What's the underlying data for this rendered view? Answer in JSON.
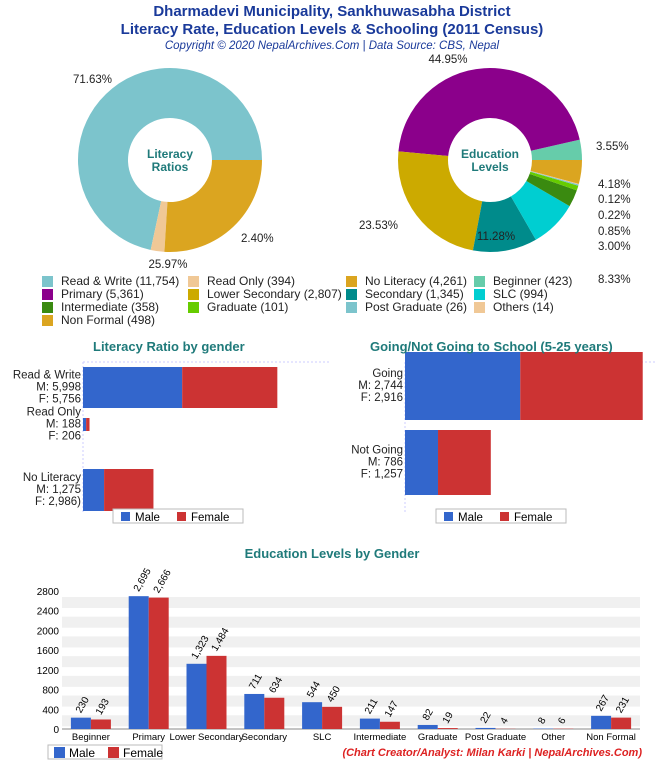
{
  "header": {
    "title1": "Dharmadevi Municipality, Sankhuwasabha District",
    "title2": "Literacy Rate, Education Levels & Schooling (2011 Census)",
    "copyright": "Copyright © 2020 NepalArchives.Com | Data Source: CBS, Nepal"
  },
  "colors": {
    "male": "#3366cc",
    "female": "#cc3333"
  },
  "chart_data": [
    {
      "type": "pie",
      "center_label": "Literacy Ratios",
      "slices": [
        {
          "label": "Read & Write",
          "value": 11754,
          "pct": "71.63%",
          "color": "#7cc4cc"
        },
        {
          "label": "Read Only",
          "value": 394,
          "pct": "2.40%",
          "color": "#f0c896"
        },
        {
          "label": "No Literacy",
          "value": 4261,
          "pct": "25.97%",
          "color": "#dba520"
        }
      ]
    },
    {
      "type": "pie",
      "center_label": "Education Levels",
      "slices": [
        {
          "label": "Beginner",
          "value": 423,
          "pct": "3.55%",
          "color": "#66ccaa"
        },
        {
          "label": "Primary",
          "value": 5361,
          "pct": "44.95%",
          "color": "#8b008b"
        },
        {
          "label": "Lower Secondary",
          "value": 2807,
          "pct": "23.53%",
          "color": "#ccaa00"
        },
        {
          "label": "Secondary",
          "value": 1345,
          "pct": "11.28%",
          "color": "#008b8b"
        },
        {
          "label": "SLC",
          "value": 994,
          "pct": "8.33%",
          "color": "#00ced1"
        },
        {
          "label": "Intermediate",
          "value": 358,
          "pct": "3.00%",
          "color": "#3a8a10"
        },
        {
          "label": "Graduate",
          "value": 101,
          "pct": "0.85%",
          "color": "#66cc00"
        },
        {
          "label": "Post Graduate",
          "value": 26,
          "pct": "0.22%",
          "color": "#7cc4cc"
        },
        {
          "label": "Others",
          "value": 14,
          "pct": "0.12%",
          "color": "#f0c896"
        },
        {
          "label": "Non Formal",
          "value": 498,
          "pct": "4.18%",
          "color": "#dba520"
        }
      ]
    },
    {
      "type": "bar",
      "orientation": "horizontal",
      "stacked": true,
      "title": "Literacy Ratio by gender",
      "xlim": [
        0,
        15000
      ],
      "categories": [
        {
          "name": "Read & Write",
          "m": "M: 5,998",
          "f": "F: 5,756"
        },
        {
          "name": "Read Only",
          "m": "M: 188",
          "f": "F: 206"
        },
        {
          "name": "No Literacy",
          "m": "M: 1,275",
          "f": "F: 2,986)"
        }
      ],
      "series": [
        {
          "name": "Male",
          "values": [
            5998,
            188,
            1275
          ]
        },
        {
          "name": "Female",
          "values": [
            5756,
            206,
            2986
          ]
        }
      ],
      "legend": "bottom"
    },
    {
      "type": "bar",
      "orientation": "horizontal",
      "stacked": true,
      "title": "Going/Not Going to School (5-25 years)",
      "xlim": [
        0,
        6000
      ],
      "categories": [
        {
          "name": "Going",
          "m": "M: 2,744",
          "f": "F: 2,916"
        },
        {
          "name": "Not Going",
          "m": "M: 786",
          "f": "F: 1,257"
        }
      ],
      "series": [
        {
          "name": "Male",
          "values": [
            2744,
            786
          ]
        },
        {
          "name": "Female",
          "values": [
            2916,
            1257
          ]
        }
      ],
      "legend": "bottom"
    },
    {
      "type": "bar",
      "title": "Education Levels by Gender",
      "ylim": [
        0,
        2800
      ],
      "yticks": [
        "0",
        "400",
        "800",
        "1200",
        "1600",
        "2000",
        "2400",
        "2800"
      ],
      "categories": [
        "Beginner",
        "Primary",
        "Lower Secondary",
        "Secondary",
        "SLC",
        "Intermediate",
        "Graduate",
        "Post Graduate",
        "Other",
        "Non Formal"
      ],
      "series": [
        {
          "name": "Male",
          "values": [
            230,
            2695,
            1323,
            711,
            544,
            211,
            82,
            22,
            8,
            267
          ],
          "labels": [
            "230",
            "2,695",
            "1,323",
            "711",
            "544",
            "211",
            "82",
            "22",
            "8",
            "267"
          ]
        },
        {
          "name": "Female",
          "values": [
            193,
            2666,
            1484,
            634,
            450,
            147,
            19,
            4,
            6,
            231
          ],
          "labels": [
            "193",
            "2,666",
            "1,484",
            "634",
            "450",
            "147",
            "19",
            "4",
            "6",
            "231"
          ]
        }
      ],
      "legend": "bottom-left"
    }
  ],
  "legend_items": [
    "Read & Write (11,754)",
    "Read Only (394)",
    "No Literacy (4,261)",
    "Beginner (423)",
    "Primary (5,361)",
    "Lower Secondary (2,807)",
    "Secondary (1,345)",
    "SLC (994)",
    "Intermediate (358)",
    "Graduate (101)",
    "Post Graduate (26)",
    "Others (14)",
    "Non Formal (498)"
  ],
  "legend_colors": [
    "#7cc4cc",
    "#f0c896",
    "#dba520",
    "#66ccaa",
    "#8b008b",
    "#ccaa00",
    "#008b8b",
    "#00ced1",
    "#3a8a10",
    "#66cc00",
    "#7cc4cc",
    "#f0c896",
    "#dba520"
  ],
  "credit": "(Chart Creator/Analyst: Milan Karki | NepalArchives.Com)"
}
